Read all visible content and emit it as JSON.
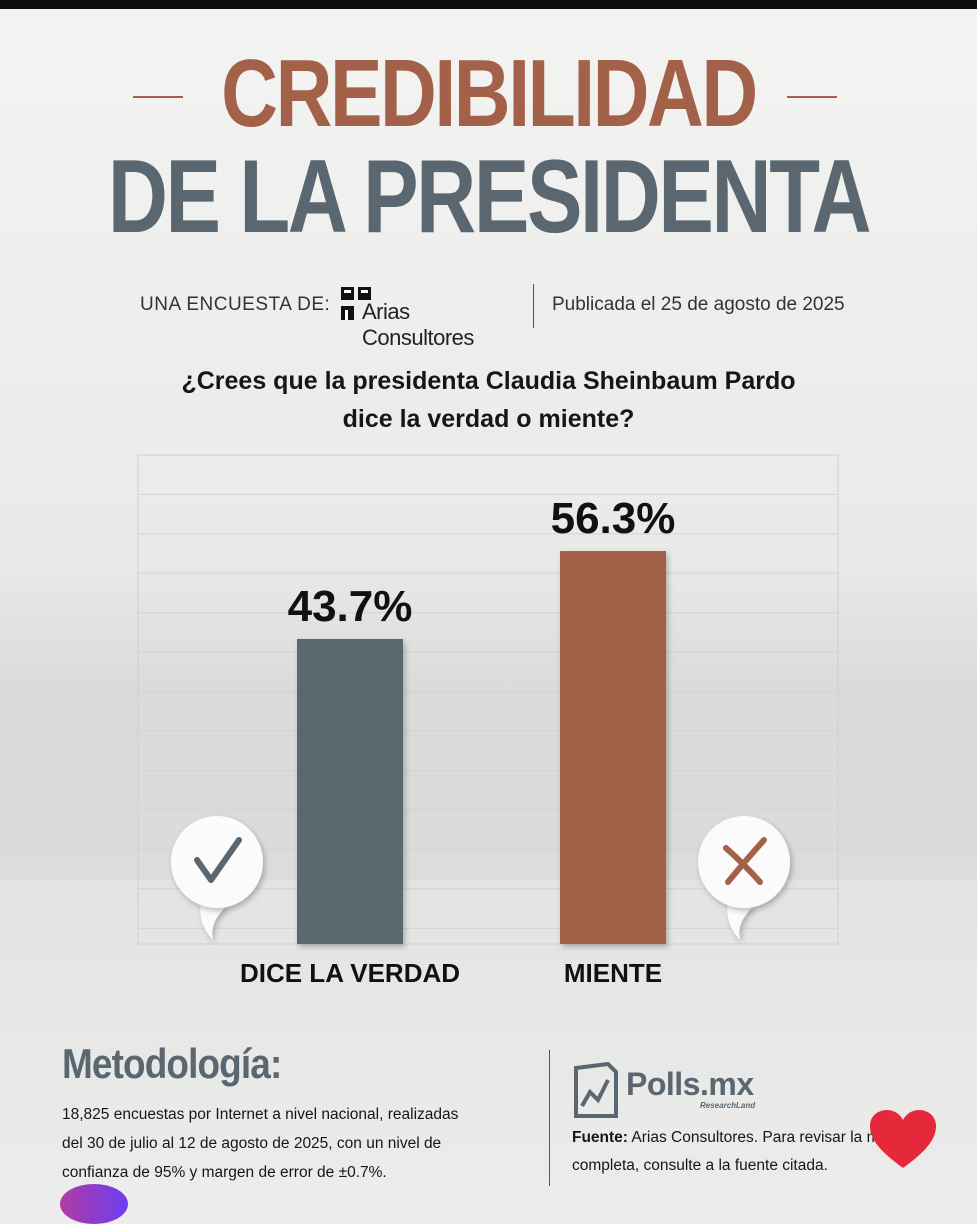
{
  "title": {
    "line1": "CREDIBILIDAD",
    "line2": "DE LA PRESIDENTA"
  },
  "byline": {
    "label": "UNA ENCUESTA DE:",
    "pollster": "Arias Consultores",
    "published": "Publicada el 25 de agosto de 2025"
  },
  "question": {
    "line1": "¿Crees que la presidenta Claudia Sheinbaum Pardo",
    "line2": "dice la verdad o miente?"
  },
  "chart_data": {
    "type": "bar",
    "categories": [
      "DICE LA VERDAD",
      "MIENTE"
    ],
    "values": [
      43.7,
      56.3
    ],
    "value_labels": [
      "43.7%",
      "56.3%"
    ],
    "colors": [
      "#5b6770",
      "#a3614a"
    ],
    "icons": [
      "checkmark-icon",
      "x-mark-icon"
    ],
    "ylim": [
      0,
      100
    ],
    "grid": true
  },
  "methodology": {
    "title": "Metodología:",
    "text": "18,825 encuestas por Internet a nivel nacional, realizadas del 30 de julio al 12 de agosto de 2025, con un nivel de confianza de 95% y margen de error de ±0.7%."
  },
  "source": {
    "brand": "Polls.mx",
    "brand_sub": "ResearchLand",
    "label": "Fuente:",
    "line1": "Arias Consultores. Para revisar la met",
    "line2": "completa, consulte a la fuente citada."
  },
  "colors": {
    "accent": "#a3614a",
    "slate": "#5b6770",
    "heart": "#e5283a"
  }
}
